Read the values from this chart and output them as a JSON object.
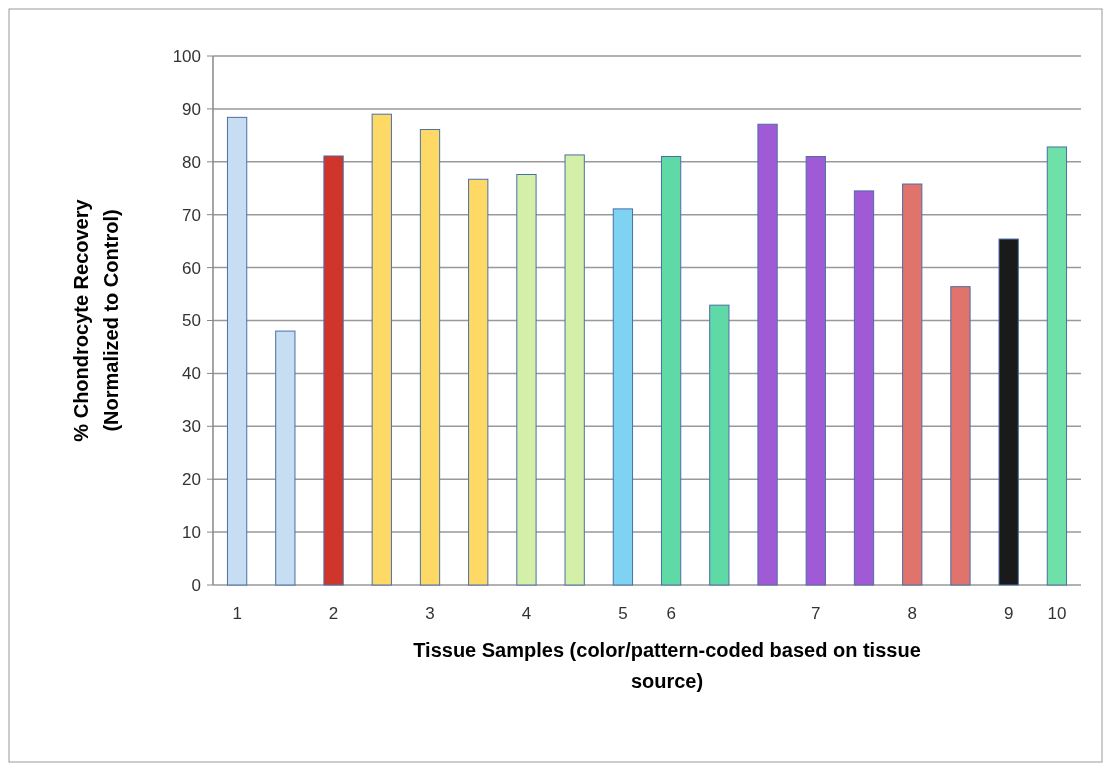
{
  "chart_data": {
    "type": "bar",
    "xlabel": "Tissue Samples (color/pattern-coded based on tissue source)",
    "ylabel": "% Chondrocyte Recovery (Normalized to Control)",
    "categories": [
      "1",
      null,
      "2",
      null,
      "3",
      null,
      "4",
      null,
      "5",
      "6",
      null,
      null,
      "7",
      null,
      "8",
      null,
      "9",
      "10"
    ],
    "values": [
      88.4,
      48,
      81.1,
      89,
      86.1,
      76.7,
      77.6,
      81.3,
      71.1,
      81,
      52.9,
      87.1,
      81,
      74.5,
      75.8,
      56.4,
      65.4,
      82.8
    ],
    "colors": [
      "#c6ddf2",
      "#c6ddf2",
      "#d0352b",
      "#ffd966",
      "#ffd966",
      "#ffd966",
      "#d4efa8",
      "#d4efa8",
      "#7fd3f2",
      "#5fd9a6",
      "#5fd9a6",
      "#a15ad6",
      "#a15ad6",
      "#a15ad6",
      "#e0736c",
      "#e0736c",
      "#1a1a1a",
      "#6fe0a8"
    ],
    "ylim": [
      0,
      100
    ],
    "yticks": [
      0,
      10,
      20,
      30,
      40,
      50,
      60,
      70,
      80,
      90,
      100
    ],
    "grid": "y"
  }
}
